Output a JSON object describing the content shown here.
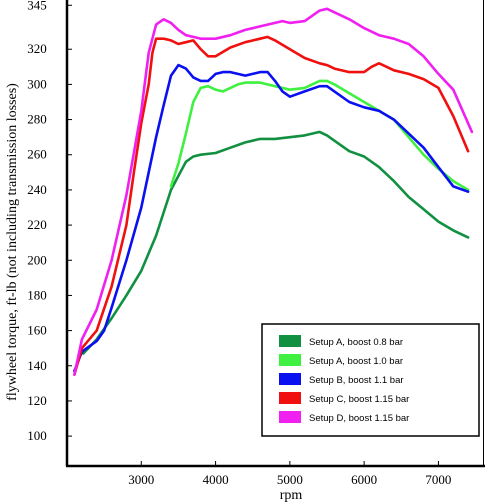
{
  "chart_data": {
    "type": "line",
    "title": "",
    "xlabel": "rpm",
    "ylabel": "flywheel torque, ft-lb (not including transmission losses)",
    "xlim": [
      2000,
      7600
    ],
    "ylim": [
      83,
      348
    ],
    "xticks": [
      3000,
      4000,
      5000,
      6000,
      7000
    ],
    "yticks": [
      100,
      120,
      140,
      160,
      180,
      200,
      220,
      240,
      260,
      280,
      300,
      320,
      345
    ],
    "grid": false,
    "legend_position": "bottom-right",
    "series": [
      {
        "name": "Setup A, boost 0.8 bar",
        "color": "#109040",
        "x": [
          2220,
          2400,
          2600,
          2800,
          3000,
          3200,
          3400,
          3600,
          3700,
          3800,
          4000,
          4200,
          4400,
          4600,
          4800,
          5000,
          5200,
          5400,
          5500,
          5600,
          5800,
          6000,
          6200,
          6400,
          6600,
          6800,
          7000,
          7200,
          7400
        ],
        "y": [
          147,
          155,
          167,
          180,
          194,
          214,
          240,
          256,
          259,
          260,
          261,
          264,
          267,
          269,
          269,
          270,
          271,
          273,
          271,
          268,
          262,
          259,
          253,
          245,
          236,
          229,
          222,
          217,
          213
        ]
      },
      {
        "name": "Setup A, boost 1.0 bar",
        "color": "#40f040",
        "x": [
          3400,
          3500,
          3600,
          3700,
          3800,
          3900,
          4000,
          4100,
          4200,
          4300,
          4400,
          4600,
          4800,
          5000,
          5200,
          5400,
          5500,
          5600,
          5800,
          6000,
          6200,
          6400,
          6600,
          6800,
          7000,
          7200,
          7400
        ],
        "y": [
          242,
          255,
          272,
          290,
          298,
          299,
          297,
          296,
          298,
          300,
          301,
          301,
          299,
          297,
          298,
          302,
          302,
          300,
          295,
          290,
          285,
          280,
          270,
          260,
          252,
          245,
          240
        ]
      },
      {
        "name": "Setup B, boost 1.1 bar",
        "color": "#0a10f0",
        "x": [
          2100,
          2200,
          2400,
          2500,
          2600,
          2800,
          3000,
          3100,
          3200,
          3300,
          3400,
          3500,
          3600,
          3700,
          3800,
          3900,
          4000,
          4100,
          4200,
          4400,
          4600,
          4700,
          4800,
          4900,
          5000,
          5200,
          5400,
          5500,
          5600,
          5800,
          6000,
          6200,
          6400,
          6600,
          6800,
          7000,
          7200,
          7400
        ],
        "y": [
          137,
          148,
          154,
          160,
          173,
          200,
          230,
          250,
          270,
          288,
          305,
          311,
          309,
          304,
          302,
          302,
          306,
          307,
          307,
          305,
          307,
          307,
          302,
          296,
          293,
          296,
          299,
          299,
          296,
          290,
          287,
          285,
          280,
          272,
          264,
          253,
          242,
          239
        ]
      },
      {
        "name": "Setup C, boost 1.15 bar",
        "color": "#f01010",
        "x": [
          2100,
          2200,
          2400,
          2600,
          2800,
          2900,
          3000,
          3100,
          3150,
          3200,
          3300,
          3400,
          3500,
          3600,
          3700,
          3800,
          3900,
          4000,
          4200,
          4400,
          4600,
          4700,
          4800,
          5000,
          5200,
          5400,
          5500,
          5600,
          5800,
          6000,
          6100,
          6200,
          6400,
          6600,
          6800,
          7000,
          7200,
          7400
        ],
        "y": [
          135,
          150,
          160,
          185,
          220,
          250,
          278,
          300,
          318,
          326,
          326,
          325,
          323,
          324,
          325,
          320,
          316,
          316,
          321,
          324,
          326,
          327,
          325,
          320,
          315,
          312,
          311,
          309,
          307,
          307,
          310,
          312,
          308,
          306,
          303,
          298,
          282,
          262
        ]
      },
      {
        "name": "Setup D, boost 1.15 bar",
        "color": "#f020f0",
        "x": [
          2100,
          2200,
          2400,
          2600,
          2800,
          3000,
          3100,
          3200,
          3300,
          3400,
          3500,
          3600,
          3700,
          3800,
          4000,
          4200,
          4400,
          4600,
          4800,
          4900,
          5000,
          5200,
          5400,
          5500,
          5600,
          5800,
          6000,
          6200,
          6400,
          6600,
          6800,
          7000,
          7200,
          7450
        ],
        "y": [
          135,
          155,
          172,
          200,
          237,
          285,
          318,
          334,
          337,
          335,
          331,
          328,
          327,
          326,
          326,
          328,
          331,
          333,
          335,
          336,
          335,
          336,
          342,
          343,
          341,
          337,
          332,
          328,
          326,
          323,
          316,
          306,
          297,
          273
        ]
      }
    ]
  }
}
